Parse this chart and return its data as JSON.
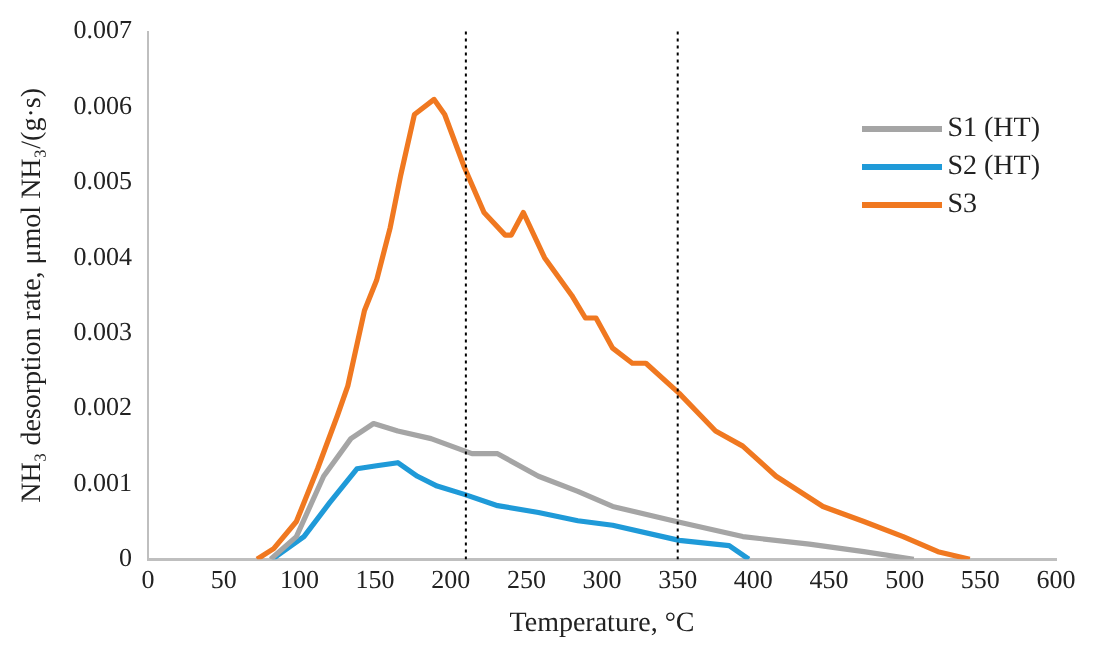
{
  "chart_data": {
    "type": "line",
    "xlabel": "Temperature, °C",
    "ylabel": "NH₃ desorption rate, μmol NH₃/(g·s)",
    "xlim": [
      0,
      600
    ],
    "xticks": [
      0,
      50,
      100,
      150,
      200,
      250,
      300,
      350,
      400,
      450,
      500,
      550,
      600
    ],
    "ylim": [
      0,
      0.007
    ],
    "yticks": [
      0,
      0.001,
      0.002,
      0.003,
      0.004,
      0.005,
      0.006,
      0.007
    ],
    "grid": false,
    "legend": "top right",
    "marker": "none",
    "line_style": "solid",
    "ref_lines": [
      {
        "axis": "x",
        "value": 210,
        "color": "#000000",
        "line_style": "dotted"
      },
      {
        "axis": "x",
        "value": 350,
        "color": "#000000",
        "line_style": "dotted"
      }
    ],
    "series": [
      {
        "name": "S1 (HT)",
        "color": "#a5a5a5",
        "x": [
          81,
          98,
          116,
          134,
          149,
          165,
          187,
          214,
          231,
          258,
          284,
          307,
          349,
          393,
          437,
          473,
          506
        ],
        "values": [
          0,
          0.0003,
          0.0011,
          0.0016,
          0.0018,
          0.0017,
          0.0016,
          0.0014,
          0.0014,
          0.0011,
          0.0009,
          0.0007,
          0.0005,
          0.0003,
          0.0002,
          0.0001,
          0
        ]
      },
      {
        "name": "S2 (HT)",
        "color": "#1f9ad8",
        "x": [
          82,
          103,
          120,
          138,
          151,
          165,
          178,
          191,
          209,
          231,
          258,
          284,
          307,
          351,
          384,
          397
        ],
        "values": [
          0,
          0.0003,
          0.00075,
          0.0012,
          0.00124,
          0.00128,
          0.0011,
          0.00097,
          0.00086,
          0.00071,
          0.00062,
          0.00051,
          0.00045,
          0.00025,
          0.00018,
          0
        ]
      },
      {
        "name": "S3",
        "color": "#f07820",
        "x": [
          72,
          83,
          98,
          112,
          125,
          132,
          143,
          151,
          160,
          167,
          176,
          189,
          196,
          209,
          222,
          236,
          240,
          248,
          262,
          280,
          289,
          296,
          307,
          320,
          329,
          351,
          375,
          393,
          415,
          446,
          473,
          499,
          522,
          543
        ],
        "values": [
          0,
          0.00014,
          0.0005,
          0.0012,
          0.0019,
          0.0023,
          0.0033,
          0.0037,
          0.0044,
          0.0051,
          0.0059,
          0.0061,
          0.0059,
          0.0052,
          0.0046,
          0.0043,
          0.0043,
          0.0046,
          0.004,
          0.0035,
          0.0032,
          0.0032,
          0.0028,
          0.0026,
          0.0026,
          0.0022,
          0.0017,
          0.0015,
          0.0011,
          0.0007,
          0.0005,
          0.0003,
          0.0001,
          0
        ]
      }
    ]
  }
}
